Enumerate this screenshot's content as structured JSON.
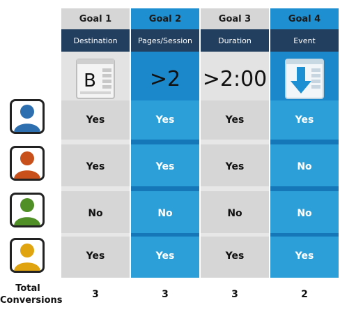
{
  "goals": [
    {
      "title": "Goal 1",
      "criterion": "Destination",
      "hero_text": "",
      "hero_icon": "page-b-icon",
      "results": [
        "Yes",
        "Yes",
        "No",
        "Yes"
      ],
      "total": "3"
    },
    {
      "title": "Goal 2",
      "criterion": "Pages/Session",
      "hero_text": ">2",
      "hero_icon": "",
      "results": [
        "Yes",
        "Yes",
        "No",
        "Yes"
      ],
      "total": "3"
    },
    {
      "title": "Goal 3",
      "criterion": "Duration",
      "hero_text": ">2:00",
      "hero_icon": "",
      "results": [
        "Yes",
        "Yes",
        "No",
        "Yes"
      ],
      "total": "3"
    },
    {
      "title": "Goal 4",
      "criterion": "Event",
      "hero_text": "",
      "hero_icon": "download-arrow-icon",
      "results": [
        "Yes",
        "No",
        "No",
        "Yes"
      ],
      "total": "2"
    }
  ],
  "users": [
    {
      "icon": "user-avatar-icon",
      "color": "#2e6fb0"
    },
    {
      "icon": "user-avatar-icon",
      "color": "#c8501a"
    },
    {
      "icon": "user-avatar-icon",
      "color": "#4f8f26"
    },
    {
      "icon": "user-avatar-icon",
      "color": "#e0a410"
    }
  ],
  "total_label": [
    "Total",
    "Conversions"
  ],
  "page_icon_letter": "B",
  "colors": {
    "header_dark": "#233f5f",
    "gray_col": "#d6d6d6",
    "blue_col": "#2d9fd8"
  }
}
